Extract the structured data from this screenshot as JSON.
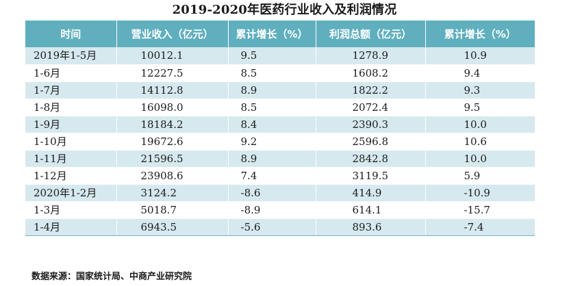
{
  "title": "2019-2020年医药行业收入及利润情况",
  "headers": [
    "时间",
    "营业收入（亿元）",
    "累计增长（%）",
    "利润总额（亿元）",
    "累计增长（%）"
  ],
  "rows": [
    [
      "2019年1-5月",
      "10012.1",
      "9.5",
      "1278.9",
      "10.9"
    ],
    [
      "1-6月",
      "12227.5",
      "8.5",
      "1608.2",
      "9.4"
    ],
    [
      "1-7月",
      "14112.8",
      "8.9",
      "1822.2",
      "9.3"
    ],
    [
      "1-8月",
      "16098.0",
      "8.5",
      "2072.4",
      "9.5"
    ],
    [
      "1-9月",
      "18184.2",
      "8.4",
      "2390.3",
      "10.0"
    ],
    [
      "1-10月",
      "19672.6",
      "9.2",
      "2596.8",
      "10.6"
    ],
    [
      "1-11月",
      "21596.5",
      "8.9",
      "2842.8",
      "10.0"
    ],
    [
      "1-12月",
      "23908.6",
      "7.4",
      "3119.5",
      "5.9"
    ],
    [
      "2020年1-2月",
      "3124.2",
      "-8.6",
      "414.9",
      "-10.9"
    ],
    [
      "1-3月",
      "5018.7",
      "-8.9",
      "614.1",
      "-15.7"
    ],
    [
      "1-4月",
      "6943.5",
      "-5.6",
      "893.6",
      "-7.4"
    ]
  ],
  "source": "数据来源：国家统计局、中商产业研究院",
  "colors": {
    "header_bg": "#5fafbe",
    "stripe_bg": "#d6e9ef"
  }
}
